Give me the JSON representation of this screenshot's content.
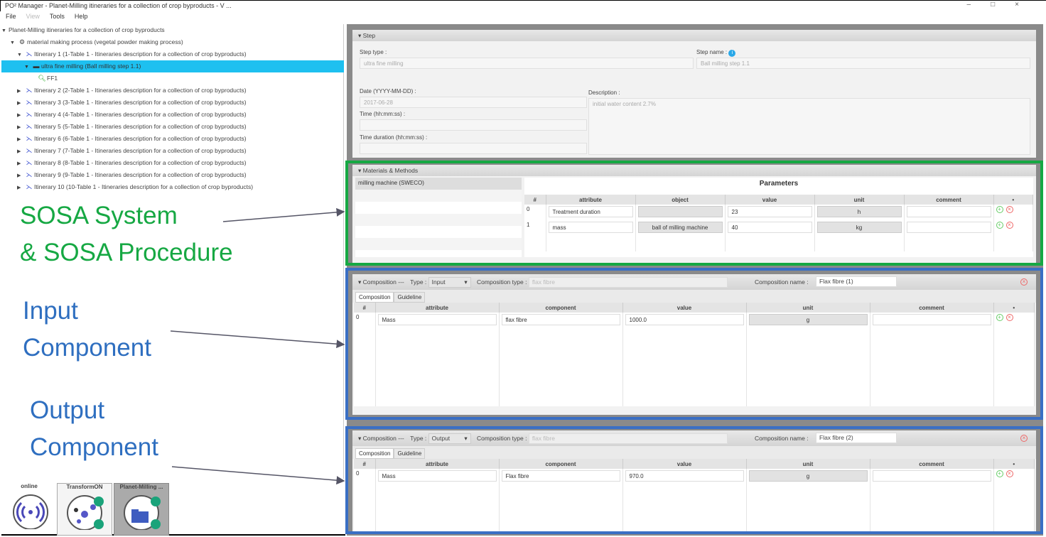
{
  "window": {
    "title": "PO² Manager  - Planet-Milling itineraries for a collection of crop byproducts - V ...",
    "controls": [
      "–",
      "□",
      "×"
    ]
  },
  "menu": [
    {
      "label": "File",
      "enabled": true
    },
    {
      "label": "View",
      "enabled": false
    },
    {
      "label": "Tools",
      "enabled": true
    },
    {
      "label": "Help",
      "enabled": true
    }
  ],
  "tree": {
    "root": "Planet-Milling itineraries for a collection of crop byproducts",
    "process": "material making process (vegetal powder making process)",
    "itinerary1": "Itinerary 1 (1-Table 1 - Itineraries description for a collection of crop byproducts)",
    "step": "ultra fine milling (Ball milling step 1.1)",
    "observation": "FF1",
    "itineraries": [
      "Itinerary 2 (2-Table 1 - Itineraries description for a collection of crop byproducts)",
      "Itinerary 3 (3-Table 1 - Itineraries description for a collection of crop byproducts)",
      "Itinerary 4 (4-Table 1 - Itineraries description for a collection of crop byproducts)",
      "Itinerary 5 (5-Table 1 - Itineraries description for a collection of crop byproducts)",
      "Itinerary 6 (6-Table 1 - Itineraries description for a collection of crop byproducts)",
      "Itinerary 7 (7-Table 1 - Itineraries description for a collection of crop byproducts)",
      "Itinerary 8 (8-Table 1 - Itineraries description for a collection of crop byproducts)",
      "Itinerary 9 (9-Table 1 - Itineraries description for a collection of crop byproducts)",
      "Itinerary 10 (10-Table 1 - Itineraries description for a collection of crop byproducts)"
    ],
    "selected_color": "#1ec0f0"
  },
  "dock": [
    {
      "label": "online",
      "icon": "wireless-icon"
    },
    {
      "label": "TransformON",
      "icon": "network-icon"
    },
    {
      "label": "Planet-Milling ...",
      "icon": "folder-icon",
      "active": true
    }
  ],
  "step": {
    "header": "Step",
    "step_type_label": "Step type :",
    "step_type": "ultra fine milling",
    "step_name_label": "Step name :",
    "step_name": "Ball milling step 1.1",
    "date_label": "Date (YYYY-MM-DD) :",
    "date": "2017-06-28",
    "time_label": "Time (hh:mm:ss) :",
    "time": "",
    "duration_label": "Time duration (hh:mm:ss) :",
    "duration": "",
    "description_label": "Description :",
    "description": "initial water content 2.7%"
  },
  "materials": {
    "header": "Materials & Methods",
    "items": [
      "milling machine (SWECO)"
    ],
    "params_title": "Parameters",
    "columns": [
      "#",
      "attribute",
      "object",
      "value",
      "unit",
      "comment"
    ],
    "rows": [
      {
        "index": "0",
        "attribute": "Treatment duration",
        "object": "",
        "value": "23",
        "unit": "h",
        "comment": ""
      },
      {
        "index": "1",
        "attribute": "mass",
        "object": "ball of milling machine",
        "value": "40",
        "unit": "kg",
        "comment": ""
      }
    ]
  },
  "compositions": [
    {
      "header": "Composition ---",
      "type_label": "Type :",
      "type": "Input",
      "ctype_label": "Composition type :",
      "ctype": "flax fibre",
      "cname_label": "Composition name :",
      "cname": "Flax fibre (1)",
      "tabs": [
        "Composition",
        "Guideline"
      ],
      "columns": [
        "#",
        "attribute",
        "component",
        "value",
        "unit",
        "comment"
      ],
      "rows": [
        {
          "index": "0",
          "attribute": "Mass",
          "component": "flax fibre",
          "value": "1000.0",
          "unit": "g",
          "comment": ""
        }
      ]
    },
    {
      "header": "Composition ---",
      "type_label": "Type :",
      "type": "Output",
      "ctype_label": "Composition type :",
      "ctype": "flax fibre",
      "cname_label": "Composition name :",
      "cname": "Flax fibre (2)",
      "tabs": [
        "Composition",
        "Guideline"
      ],
      "columns": [
        "#",
        "attribute",
        "component",
        "value",
        "unit",
        "comment"
      ],
      "rows": [
        {
          "index": "0",
          "attribute": "Mass",
          "component": "Flax fibre",
          "value": "970.0",
          "unit": "g",
          "comment": ""
        }
      ]
    }
  ],
  "annotations": {
    "sosa": [
      "SOSA System",
      "& SOSA Procedure"
    ],
    "input": [
      "Input",
      "Component"
    ],
    "output": [
      "Output",
      "Component"
    ],
    "green": "#16a843",
    "blue": "#3a6fc4"
  }
}
